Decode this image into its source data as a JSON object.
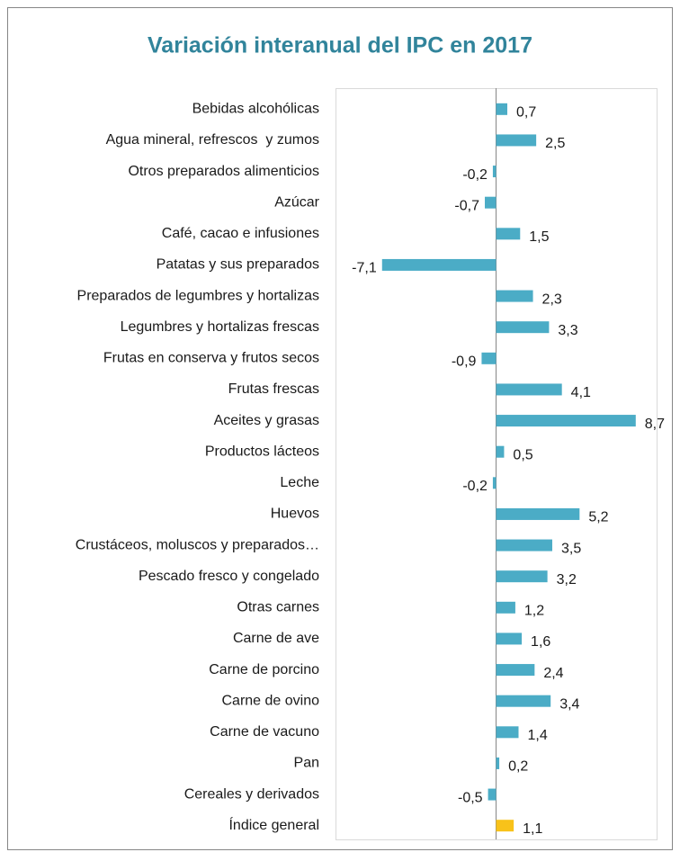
{
  "chart_data": {
    "type": "bar",
    "orientation": "horizontal",
    "title": "Variación interanual del IPC en 2017",
    "categories": [
      "Bebidas alcohólicas",
      "Agua mineral, refrescos  y zumos",
      "Otros preparados alimenticios",
      "Azúcar",
      "Café, cacao e infusiones",
      "Patatas y sus preparados",
      "Preparados de legumbres y hortalizas",
      "Legumbres y hortalizas frescas",
      "Frutas en conserva y frutos secos",
      "Frutas frescas",
      "Aceites y grasas",
      "Productos lácteos",
      "Leche",
      "Huevos",
      "Crustáceos, moluscos y preparados…",
      "Pescado fresco y congelado",
      "Otras carnes",
      "Carne de ave",
      "Carne de porcino",
      "Carne de ovino",
      "Carne de vacuno",
      "Pan",
      "Cereales y derivados",
      "Índice general"
    ],
    "values": [
      0.7,
      2.5,
      -0.2,
      -0.7,
      1.5,
      -7.1,
      2.3,
      3.3,
      -0.9,
      4.1,
      8.7,
      0.5,
      -0.2,
      5.2,
      3.5,
      3.2,
      1.2,
      1.6,
      2.4,
      3.4,
      1.4,
      0.2,
      -0.5,
      1.1
    ],
    "value_labels": [
      "0,7",
      "2,5",
      "-0,2",
      "-0,7",
      "1,5",
      "-7,1",
      "2,3",
      "3,3",
      "-0,9",
      "4,1",
      "8,7",
      "0,5",
      "-0,2",
      "5,2",
      "3,5",
      "3,2",
      "1,2",
      "1,6",
      "2,4",
      "3,4",
      "1,4",
      "0,2",
      "-0,5",
      "1,1"
    ],
    "colors": [
      "#4bacc6",
      "#4bacc6",
      "#4bacc6",
      "#4bacc6",
      "#4bacc6",
      "#4bacc6",
      "#4bacc6",
      "#4bacc6",
      "#4bacc6",
      "#4bacc6",
      "#4bacc6",
      "#4bacc6",
      "#4bacc6",
      "#4bacc6",
      "#4bacc6",
      "#4bacc6",
      "#4bacc6",
      "#4bacc6",
      "#4bacc6",
      "#4bacc6",
      "#4bacc6",
      "#4bacc6",
      "#4bacc6",
      "#f8c21a"
    ],
    "xlim": [
      -10,
      10
    ]
  }
}
